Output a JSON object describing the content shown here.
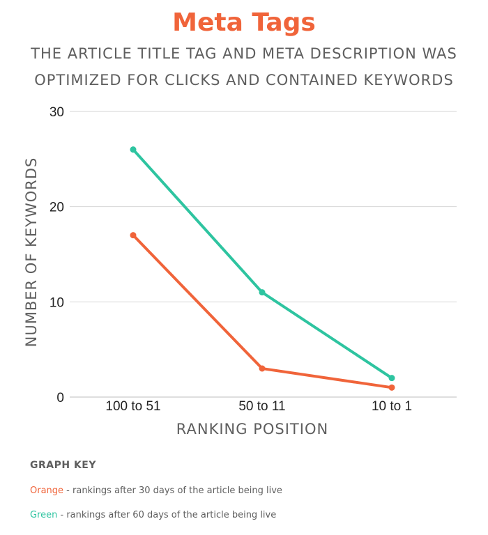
{
  "chart_data": {
    "type": "line",
    "title": "Meta Tags",
    "subtitle": "THE ARTICLE TITLE TAG AND META DESCRIPTION WAS OPTIMIZED FOR CLICKS AND CONTAINED KEYWORDS",
    "xlabel": "RANKING POSITION",
    "ylabel": "NUMBER OF KEYWORDS",
    "categories": [
      "100 to 51",
      "50 to 11",
      "10 to 1"
    ],
    "ylim": [
      0,
      30
    ],
    "yticks": [
      0,
      10,
      20,
      30
    ],
    "grid": true,
    "series": [
      {
        "key": "orange",
        "color": "#f0643a",
        "values": [
          17,
          3,
          1
        ]
      },
      {
        "key": "green",
        "color": "#2ec4a0",
        "values": [
          26,
          11,
          2
        ]
      }
    ]
  },
  "graph_key": {
    "heading": "GRAPH KEY",
    "items": [
      {
        "color_word": "Orange",
        "color": "#f0643a",
        "description": " - rankings after 30 days of the article being live"
      },
      {
        "color_word": "Green",
        "color": "#2ec4a0",
        "description": " - rankings after 60 days of the article being live"
      }
    ]
  }
}
